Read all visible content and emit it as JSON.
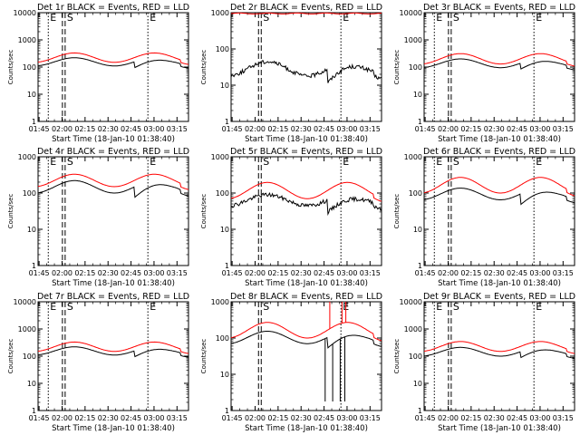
{
  "chart_data": [
    {
      "type": "line",
      "title": "Det 1r BLACK = Events, RED = LLD",
      "xlabel": "Start Time (18-Jan-10 01:38:40)",
      "ylabel": "Counts/sec",
      "yscale": "log",
      "ylim": [
        1,
        10000
      ],
      "x_ticks": [
        "01:45",
        "02:00",
        "02:15",
        "02:30",
        "02:45",
        "03:00",
        "03:15"
      ],
      "y_ticks": [
        "1",
        "10",
        "100",
        "1000",
        "10000"
      ],
      "series": [
        {
          "color": "#ff0000",
          "shape": "wave",
          "level": 150,
          "amp": 2.2
        },
        {
          "color": "#000000",
          "shape": "wave",
          "level": 110,
          "amp": 2.0,
          "step_drop": 0.6
        }
      ],
      "markers": [
        {
          "label": "E",
          "minute": 6,
          "style": "dotted"
        },
        {
          "label": "S",
          "minute": 17,
          "style": "dashed"
        },
        {
          "label": "E",
          "minute": 71,
          "style": "dotted"
        }
      ]
    },
    {
      "type": "line",
      "title": "Det 2r BLACK = Events, RED = LLD",
      "xlabel": "Start Time (18-Jan-10 01:38:40)",
      "ylabel": "Counts/sec",
      "yscale": "log",
      "ylim": [
        1,
        1000
      ],
      "x_ticks": [
        "01:45",
        "02:00",
        "02:15",
        "02:30",
        "02:45",
        "03:00",
        "03:15"
      ],
      "y_ticks": [
        "1",
        "10",
        "100",
        "1000"
      ],
      "series": [
        {
          "color": "#ff0000",
          "shape": "flat",
          "level": 950,
          "amp": 1.05
        },
        {
          "color": "#000000",
          "shape": "wave",
          "level": 18,
          "amp": 2.5,
          "step_drop": 0.4,
          "noisy": true
        }
      ],
      "markers": [
        {
          "label": "S",
          "minute": 19,
          "style": "dashed"
        },
        {
          "label": "E",
          "minute": 71,
          "style": "dotted"
        }
      ]
    },
    {
      "type": "line",
      "title": "Det 3r BLACK = Events, RED = LLD",
      "xlabel": "Start Time (18-Jan-10 01:38:40)",
      "ylabel": "Counts/sec",
      "yscale": "log",
      "ylim": [
        1,
        10000
      ],
      "x_ticks": [
        "01:45",
        "02:00",
        "02:15",
        "02:30",
        "02:45",
        "03:00",
        "03:15"
      ],
      "y_ticks": [
        "1",
        "10",
        "100",
        "1000",
        "10000"
      ],
      "series": [
        {
          "color": "#ff0000",
          "shape": "wave",
          "level": 130,
          "amp": 2.4
        },
        {
          "color": "#000000",
          "shape": "wave",
          "level": 95,
          "amp": 2.1,
          "step_drop": 0.6
        }
      ],
      "markers": [
        {
          "label": "E",
          "minute": 6,
          "style": "dotted"
        },
        {
          "label": "S",
          "minute": 17,
          "style": "dashed"
        },
        {
          "label": "E",
          "minute": 71,
          "style": "dotted"
        }
      ]
    },
    {
      "type": "line",
      "title": "Det 4r BLACK = Events, RED = LLD",
      "xlabel": "Start Time (18-Jan-10 01:38:40)",
      "ylabel": "Counts/sec",
      "yscale": "log",
      "ylim": [
        1,
        1000
      ],
      "x_ticks": [
        "01:45",
        "02:00",
        "02:15",
        "02:30",
        "02:45",
        "03:00",
        "03:15"
      ],
      "y_ticks": [
        "1",
        "10",
        "100",
        "1000"
      ],
      "series": [
        {
          "color": "#ff0000",
          "shape": "wave",
          "level": 150,
          "amp": 2.2
        },
        {
          "color": "#000000",
          "shape": "wave",
          "level": 100,
          "amp": 2.2,
          "step_drop": 0.5
        }
      ],
      "markers": [
        {
          "label": "E",
          "minute": 6,
          "style": "dotted"
        },
        {
          "label": "S",
          "minute": 17,
          "style": "dashed"
        },
        {
          "label": "E",
          "minute": 71,
          "style": "dotted"
        }
      ]
    },
    {
      "type": "line",
      "title": "Det 5r BLACK = Events, RED = LLD",
      "xlabel": "Start Time (18-Jan-10 01:38:40)",
      "ylabel": "Counts/sec",
      "yscale": "log",
      "ylim": [
        1,
        1000
      ],
      "x_ticks": [
        "01:45",
        "02:00",
        "02:15",
        "02:30",
        "02:45",
        "03:00",
        "03:15"
      ],
      "y_ticks": [
        "1",
        "10",
        "100",
        "1000"
      ],
      "series": [
        {
          "color": "#ff0000",
          "shape": "wave",
          "level": 70,
          "amp": 2.8
        },
        {
          "color": "#000000",
          "shape": "wave",
          "level": 45,
          "amp": 2.0,
          "step_drop": 0.45,
          "noisy": true
        }
      ],
      "markers": [
        {
          "label": "S",
          "minute": 19,
          "style": "dashed"
        },
        {
          "label": "E",
          "minute": 71,
          "style": "dotted"
        }
      ]
    },
    {
      "type": "line",
      "title": "Det 6r BLACK = Events, RED = LLD",
      "xlabel": "Start Time (18-Jan-10 01:38:40)",
      "ylabel": "Counts/sec",
      "yscale": "log",
      "ylim": [
        1,
        1000
      ],
      "x_ticks": [
        "01:45",
        "02:00",
        "02:15",
        "02:30",
        "02:45",
        "03:00",
        "03:15"
      ],
      "y_ticks": [
        "1",
        "10",
        "100",
        "1000"
      ],
      "series": [
        {
          "color": "#ff0000",
          "shape": "wave",
          "level": 100,
          "amp": 2.7
        },
        {
          "color": "#000000",
          "shape": "wave",
          "level": 65,
          "amp": 2.1,
          "step_drop": 0.5
        }
      ],
      "markers": [
        {
          "label": "E",
          "minute": 6,
          "style": "dotted"
        },
        {
          "label": "S",
          "minute": 17,
          "style": "dashed"
        },
        {
          "label": "E",
          "minute": 71,
          "style": "dotted"
        }
      ]
    },
    {
      "type": "line",
      "title": "Det 7r BLACK = Events, RED = LLD",
      "xlabel": "Start Time (18-Jan-10 01:38:40)",
      "ylabel": "Counts/sec",
      "yscale": "log",
      "ylim": [
        1,
        10000
      ],
      "x_ticks": [
        "01:45",
        "02:00",
        "02:15",
        "02:30",
        "02:45",
        "03:00",
        "03:15"
      ],
      "y_ticks": [
        "1",
        "10",
        "100",
        "1000",
        "10000"
      ],
      "series": [
        {
          "color": "#ff0000",
          "shape": "wave",
          "level": 150,
          "amp": 2.2
        },
        {
          "color": "#000000",
          "shape": "wave",
          "level": 110,
          "amp": 2.0,
          "step_drop": 0.6
        }
      ],
      "markers": [
        {
          "label": "E",
          "minute": 6,
          "style": "dotted"
        },
        {
          "label": "S",
          "minute": 17,
          "style": "dashed"
        },
        {
          "label": "E",
          "minute": 71,
          "style": "dotted"
        }
      ]
    },
    {
      "type": "line",
      "title": "Det 8r BLACK = Events, RED = LLD",
      "xlabel": "Start Time (18-Jan-10 01:38:40)",
      "ylabel": "Counts/sec",
      "yscale": "log",
      "ylim": [
        1,
        1000
      ],
      "x_ticks": [
        "01:45",
        "02:00",
        "02:15",
        "02:30",
        "02:45",
        "03:00",
        "03:15"
      ],
      "y_ticks": [
        "1",
        "10",
        "100",
        "1000"
      ],
      "series": [
        {
          "color": "#ff0000",
          "shape": "wave",
          "level": 100,
          "amp": 2.7,
          "spikes": true
        },
        {
          "color": "#000000",
          "shape": "wave",
          "level": 70,
          "amp": 2.2,
          "step_drop": 0.5,
          "spikes_down": true
        }
      ],
      "markers": [
        {
          "label": "S",
          "minute": 19,
          "style": "dashed"
        },
        {
          "label": "E",
          "minute": 71,
          "style": "dotted"
        }
      ]
    },
    {
      "type": "line",
      "title": "Det 9r BLACK = Events, RED = LLD",
      "xlabel": "Start Time (18-Jan-10 01:38:40)",
      "ylabel": "Counts/sec",
      "yscale": "log",
      "ylim": [
        1,
        10000
      ],
      "x_ticks": [
        "01:45",
        "02:00",
        "02:15",
        "02:30",
        "02:45",
        "03:00",
        "03:15"
      ],
      "y_ticks": [
        "1",
        "10",
        "100",
        "1000",
        "10000"
      ],
      "series": [
        {
          "color": "#ff0000",
          "shape": "wave",
          "level": 150,
          "amp": 2.3
        },
        {
          "color": "#000000",
          "shape": "wave",
          "level": 100,
          "amp": 2.1,
          "step_drop": 0.6
        }
      ],
      "markers": [
        {
          "label": "E",
          "minute": 6,
          "style": "dotted"
        },
        {
          "label": "S",
          "minute": 17,
          "style": "dashed"
        },
        {
          "label": "E",
          "minute": 71,
          "style": "dotted"
        }
      ]
    }
  ]
}
